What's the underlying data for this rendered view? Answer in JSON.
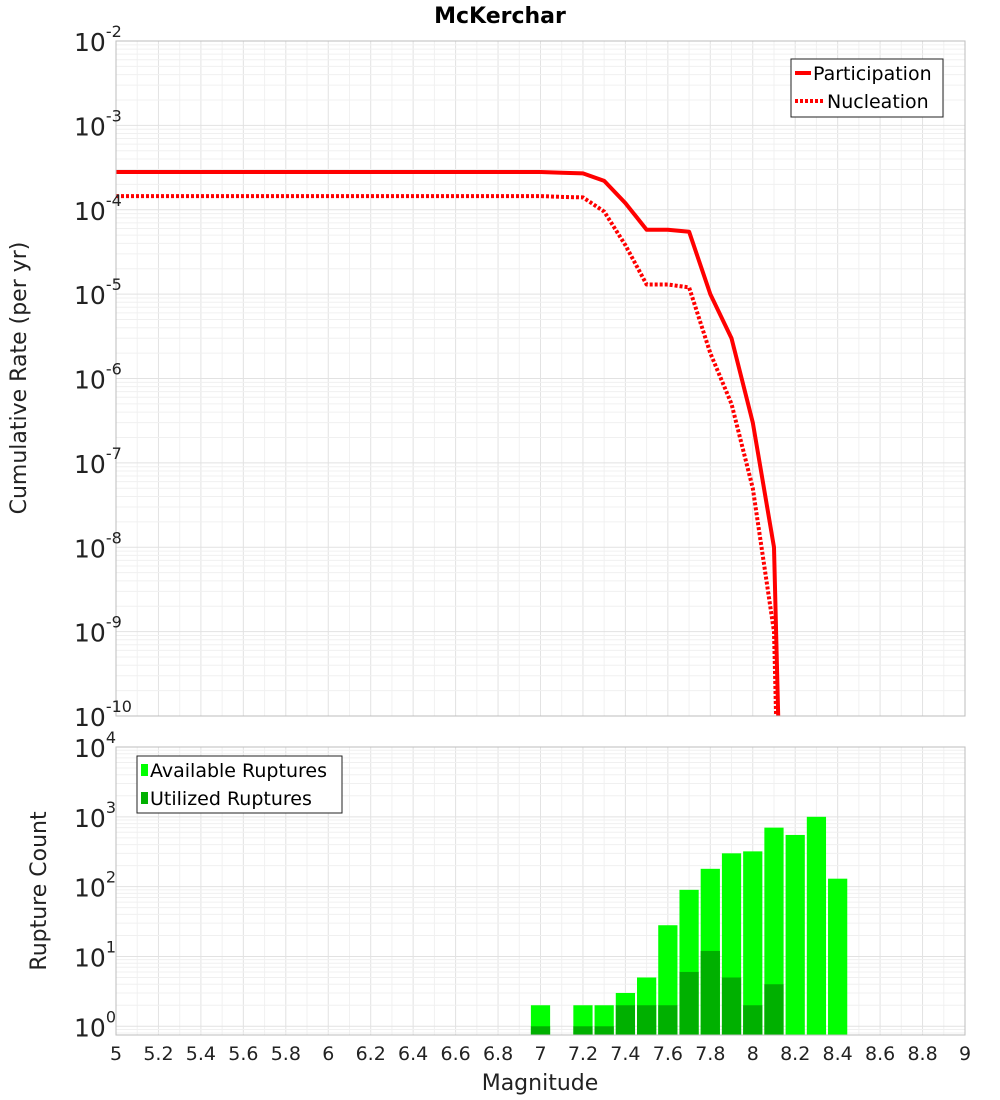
{
  "title": "McKerchar",
  "colors": {
    "rate_line": "#ff0000",
    "available": "#00ff00",
    "utilized": "#00b000",
    "grid": "#e6e6e6",
    "frame": "#bdbdbd"
  },
  "chart_data": [
    {
      "type": "line",
      "title": "McKerchar",
      "xlabel": "",
      "ylabel": "Cumulative Rate (per yr)",
      "yscale": "log",
      "xlim": [
        5,
        9
      ],
      "ylim_exponents": [
        -10,
        -2
      ],
      "y_tick_labels": [
        {
          "base": "10",
          "exp": "-2"
        },
        {
          "base": "10",
          "exp": "-3"
        },
        {
          "base": "10",
          "exp": "-4"
        },
        {
          "base": "10",
          "exp": "-5"
        },
        {
          "base": "10",
          "exp": "-6"
        },
        {
          "base": "10",
          "exp": "-7"
        },
        {
          "base": "10",
          "exp": "-8"
        },
        {
          "base": "10",
          "exp": "-9"
        },
        {
          "base": "10",
          "exp": "-10"
        }
      ],
      "legend": {
        "placement": "top-right"
      },
      "series": [
        {
          "name": "Participation",
          "style": "solid",
          "x": [
            5.0,
            7.0,
            7.1,
            7.2,
            7.3,
            7.4,
            7.5,
            7.6,
            7.7,
            7.8,
            7.9,
            8.0,
            8.1,
            8.12
          ],
          "y": [
            0.00028,
            0.00028,
            0.000275,
            0.00027,
            0.00022,
            0.00012,
            5.8e-05,
            5.8e-05,
            5.5e-05,
            1e-05,
            3e-06,
            3e-07,
            1e-08,
            1e-10
          ]
        },
        {
          "name": "Nucleation",
          "style": "dotted",
          "x": [
            5.0,
            7.0,
            7.1,
            7.2,
            7.3,
            7.4,
            7.5,
            7.6,
            7.7,
            7.8,
            7.9,
            8.0,
            8.1,
            8.11
          ],
          "y": [
            0.000145,
            0.000145,
            0.000142,
            0.00014,
            9.5e-05,
            3.8e-05,
            1.3e-05,
            1.3e-05,
            1.2e-05,
            2e-06,
            5e-07,
            5e-08,
            1e-09,
            1e-10
          ]
        }
      ]
    },
    {
      "type": "bar",
      "xlabel": "Magnitude",
      "ylabel": "Rupture Count",
      "yscale": "log",
      "xlim": [
        5,
        9
      ],
      "ylim_exponents": [
        0,
        4
      ],
      "ylim_values": [
        0.75,
        10000
      ],
      "bar_width": 0.1,
      "x_tick_labels": [
        "5",
        "5.2",
        "5.4",
        "5.6",
        "5.8",
        "6",
        "6.2",
        "6.4",
        "6.6",
        "6.8",
        "7",
        "7.2",
        "7.4",
        "7.6",
        "7.8",
        "8",
        "8.2",
        "8.4",
        "8.6",
        "8.8",
        "9"
      ],
      "y_tick_labels": [
        {
          "base": "10",
          "exp": "0"
        },
        {
          "base": "10",
          "exp": "1"
        },
        {
          "base": "10",
          "exp": "2"
        },
        {
          "base": "10",
          "exp": "3"
        },
        {
          "base": "10",
          "exp": "4"
        }
      ],
      "legend": {
        "placement": "top-left"
      },
      "series": [
        {
          "name": "Available Ruptures",
          "x": [
            7.0,
            7.2,
            7.3,
            7.4,
            7.5,
            7.6,
            7.7,
            7.8,
            7.9,
            8.0,
            8.1,
            8.2,
            8.3,
            8.4
          ],
          "values": [
            2,
            2,
            2,
            3,
            5,
            28,
            90,
            180,
            300,
            320,
            700,
            550,
            1000,
            130
          ]
        },
        {
          "name": "Utilized Ruptures",
          "x": [
            7.0,
            7.2,
            7.3,
            7.4,
            7.5,
            7.6,
            7.7,
            7.8,
            7.9,
            8.0,
            8.1
          ],
          "values": [
            1,
            1,
            1,
            2,
            2,
            2,
            6,
            12,
            5,
            2,
            4
          ]
        }
      ]
    }
  ]
}
